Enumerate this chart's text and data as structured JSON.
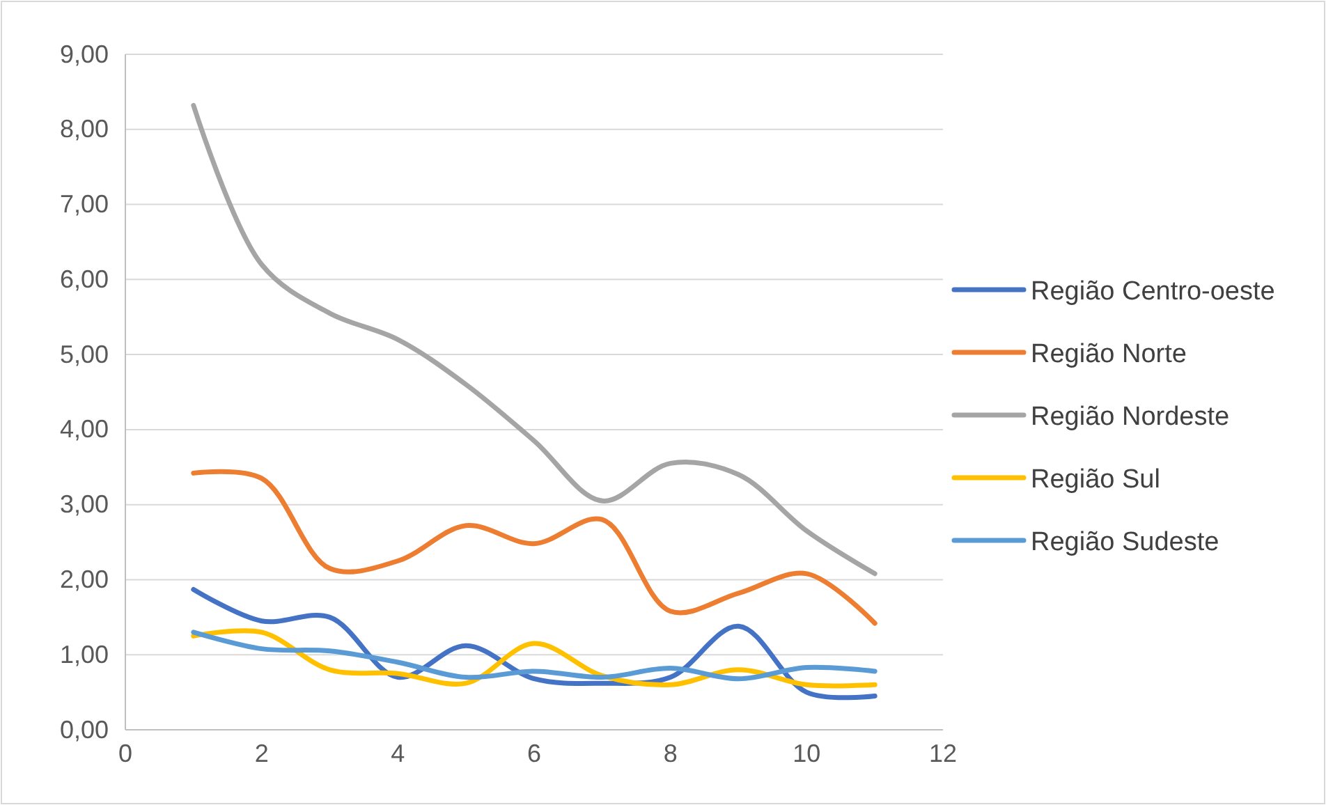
{
  "chart_data": {
    "type": "line",
    "x": [
      1,
      2,
      3,
      4,
      5,
      6,
      7,
      8,
      9,
      10,
      11
    ],
    "series": [
      {
        "name": "Região Centro-oeste",
        "color": "#4472c4",
        "values": [
          1.87,
          1.45,
          1.5,
          0.7,
          1.12,
          0.68,
          0.62,
          0.7,
          1.38,
          0.5,
          0.45
        ]
      },
      {
        "name": "Região Norte",
        "color": "#ed7d31",
        "values": [
          3.42,
          3.35,
          2.15,
          2.25,
          2.72,
          2.48,
          2.8,
          1.58,
          1.82,
          2.08,
          1.42
        ]
      },
      {
        "name": "Região Nordeste",
        "color": "#a5a5a5",
        "values": [
          8.32,
          6.2,
          5.55,
          5.2,
          4.6,
          3.85,
          3.05,
          3.55,
          3.4,
          2.65,
          2.08
        ]
      },
      {
        "name": "Região Sul",
        "color": "#ffc000",
        "values": [
          1.25,
          1.3,
          0.8,
          0.75,
          0.62,
          1.15,
          0.72,
          0.6,
          0.8,
          0.6,
          0.6
        ]
      },
      {
        "name": "Região Sudeste",
        "color": "#5b9bd5",
        "values": [
          1.3,
          1.08,
          1.05,
          0.9,
          0.7,
          0.78,
          0.7,
          0.82,
          0.68,
          0.83,
          0.78
        ]
      }
    ],
    "xlim": [
      0,
      12
    ],
    "xticks": [
      0,
      2,
      4,
      6,
      8,
      10,
      12
    ],
    "ylim": [
      0,
      9
    ],
    "yticks": [
      {
        "value": 0,
        "label": "0,00"
      },
      {
        "value": 1,
        "label": "1,00"
      },
      {
        "value": 2,
        "label": "2,00"
      },
      {
        "value": 3,
        "label": "3,00"
      },
      {
        "value": 4,
        "label": "4,00"
      },
      {
        "value": 5,
        "label": "5,00"
      },
      {
        "value": 6,
        "label": "6,00"
      },
      {
        "value": 7,
        "label": "7,00"
      },
      {
        "value": 8,
        "label": "8,00"
      },
      {
        "value": 9,
        "label": "9,00"
      }
    ],
    "grid": "y",
    "legend": "right",
    "marker": "none",
    "line_style": "solid"
  }
}
